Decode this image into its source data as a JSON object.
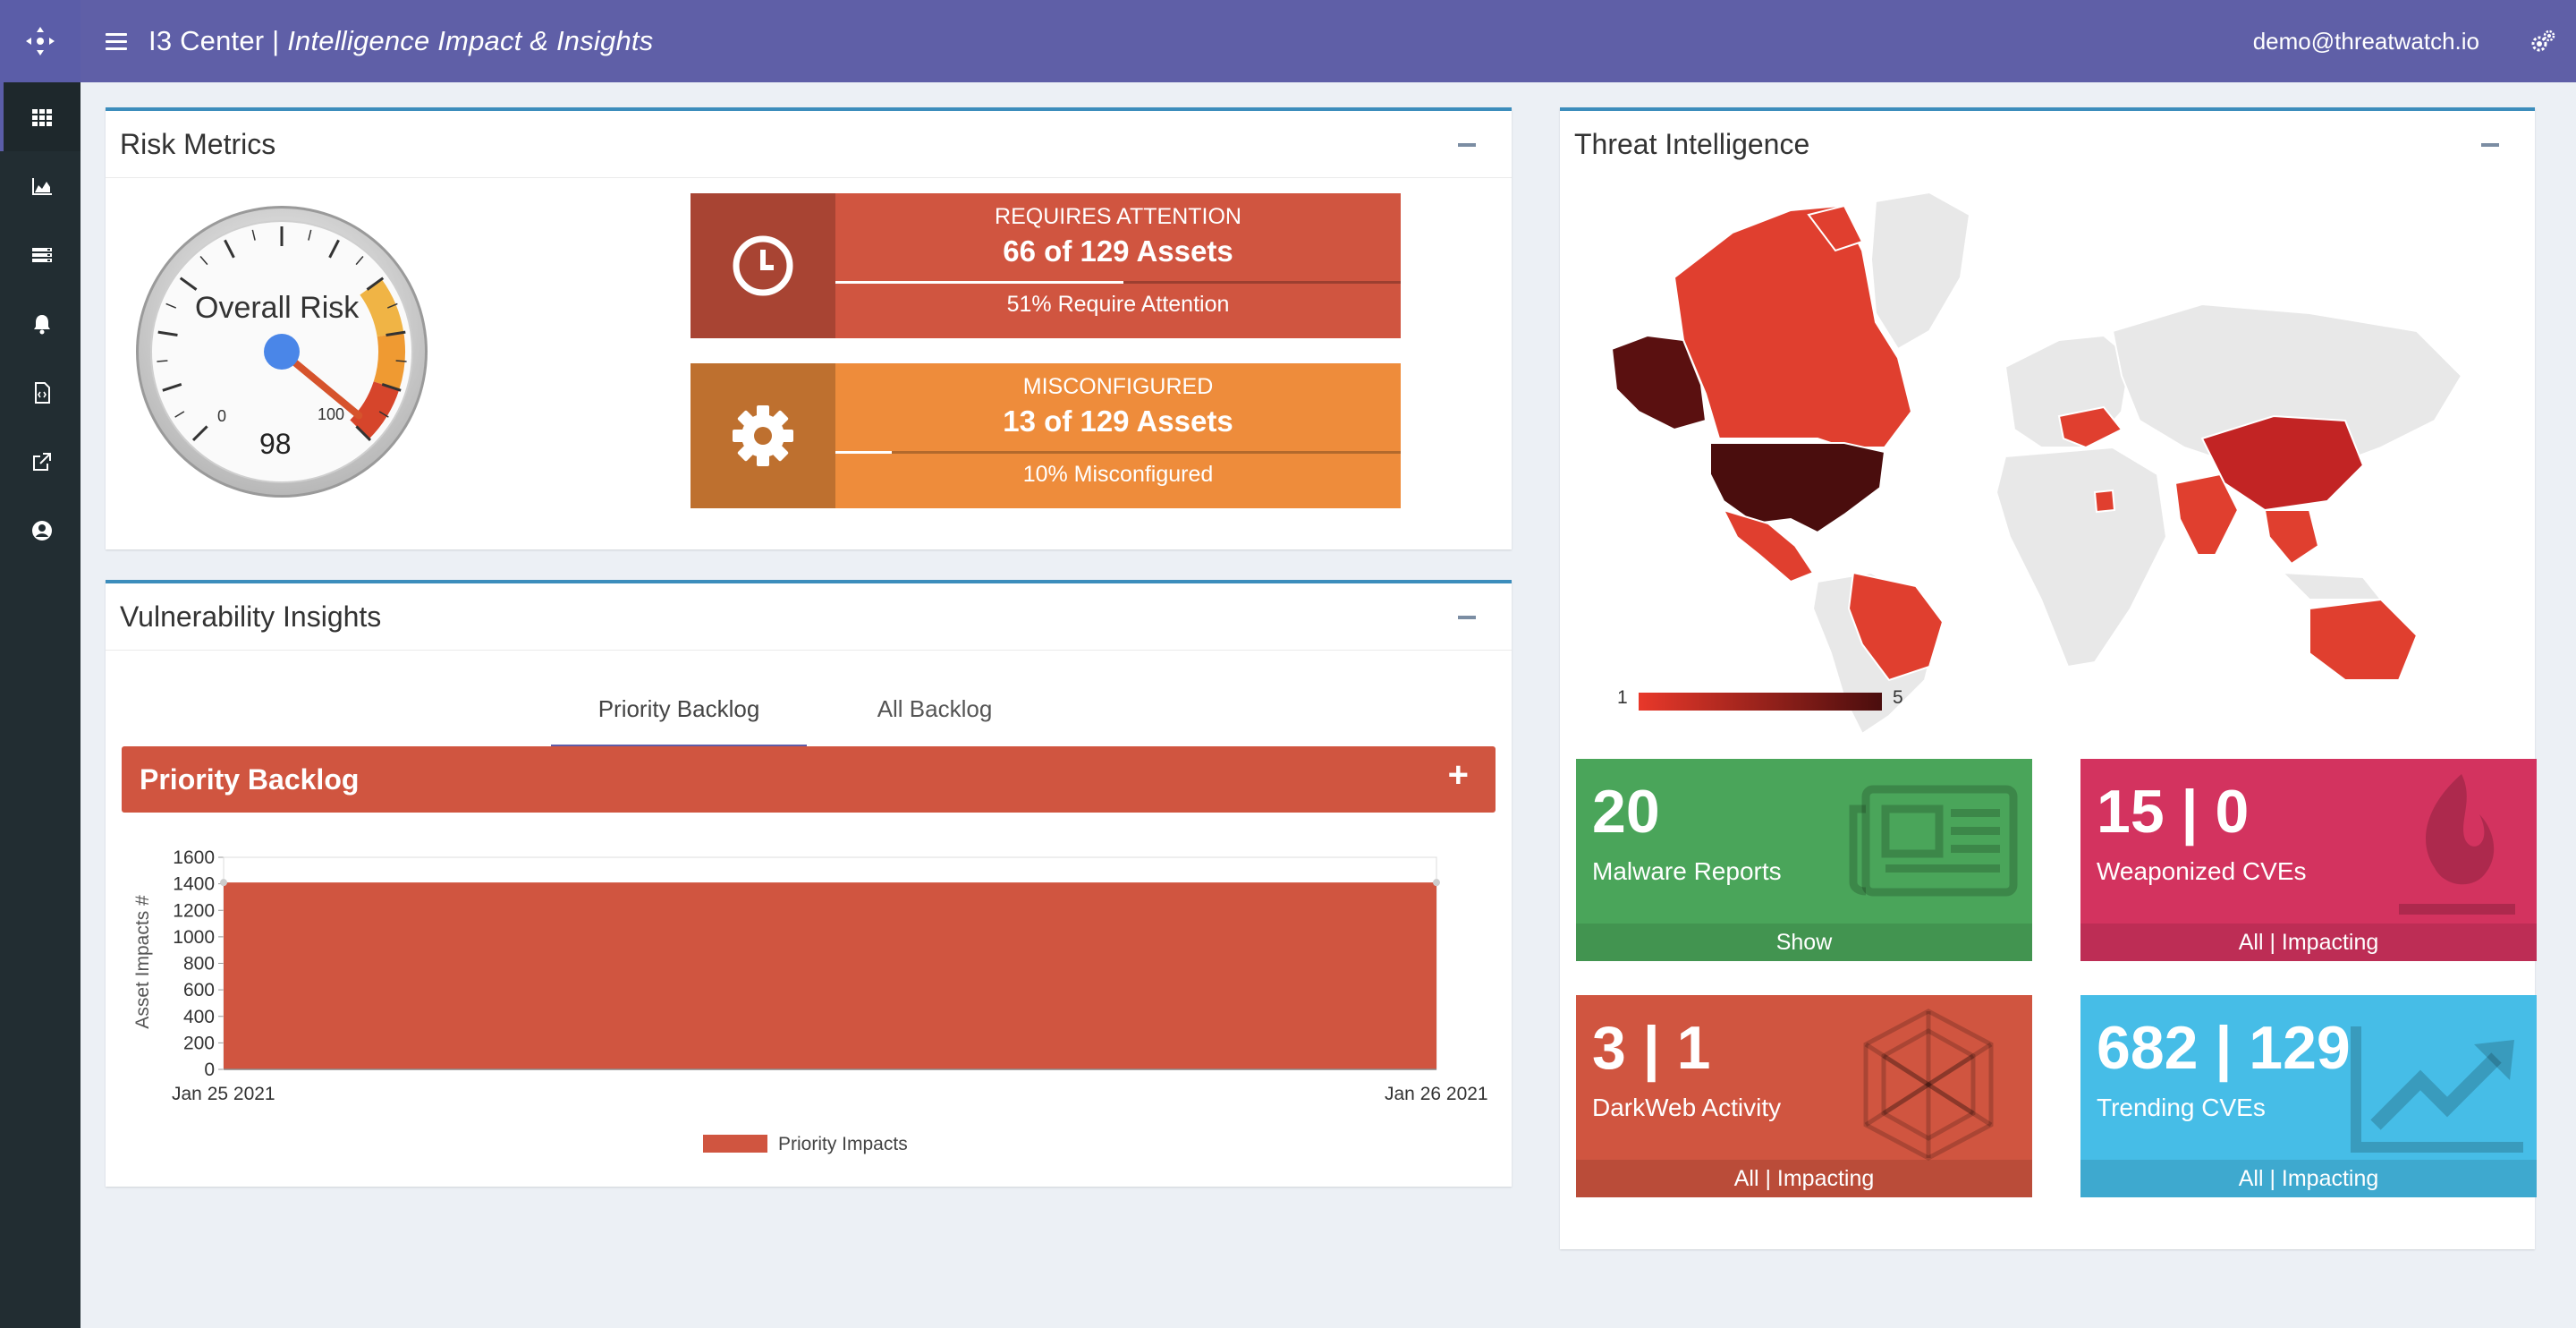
{
  "app": {
    "title_prefix": "I3 Center | ",
    "title_main": "Intelligence Impact & Insights",
    "user_email": "demo@threatwatch.io"
  },
  "sidebar": {
    "items": [
      {
        "icon": "grid-icon",
        "active": true
      },
      {
        "icon": "area-chart-icon"
      },
      {
        "icon": "server-list-icon"
      },
      {
        "icon": "bell-icon"
      },
      {
        "icon": "code-file-icon"
      },
      {
        "icon": "external-link-icon"
      },
      {
        "icon": "user-circle-icon"
      }
    ]
  },
  "risk_metrics": {
    "title": "Risk Metrics",
    "gauge": {
      "title": "Overall Risk",
      "value": "98",
      "min_label": "0",
      "max_label": "100",
      "value_num": 98
    },
    "requires_attention": {
      "label": "REQUIRES ATTENTION",
      "count": "66 of 129 Assets",
      "sub": "51% Require Attention",
      "progress": 0.51,
      "color": "#d05540",
      "icon_bg": "#a84433"
    },
    "misconfigured": {
      "label": "MISCONFIGURED",
      "count": "13 of 129 Assets",
      "sub": "10% Misconfigured",
      "progress": 0.1,
      "color": "#ee8c3b",
      "icon_bg": "#be702f"
    }
  },
  "vulnerability_insights": {
    "title": "Vulnerability Insights",
    "tabs": [
      "Priority Backlog",
      "All Backlog"
    ],
    "active_tab": "Priority Backlog",
    "backlog_bar": "Priority Backlog",
    "chart_data": {
      "type": "area",
      "x": [
        "Jan 25 2021",
        "Jan 26 2021"
      ],
      "series": [
        {
          "name": "Priority Impacts",
          "values": [
            1410,
            1410
          ],
          "color": "#d05540"
        }
      ],
      "ylabel": "Asset Impacts #",
      "xlabel": "",
      "ylim": [
        0,
        1600
      ],
      "yticks": [
        "0",
        "200",
        "400",
        "600",
        "800",
        "1000",
        "1200",
        "1400",
        "1600"
      ],
      "legend": "bottom"
    }
  },
  "threat_intelligence": {
    "title": "Threat Intelligence",
    "map_legend": {
      "min": "1",
      "max": "5"
    },
    "boxes": [
      {
        "value": "20",
        "label": "Malware Reports",
        "footer": "Show",
        "color": "#4aa55a",
        "icon": "newspaper-icon"
      },
      {
        "value": "15 | 0",
        "label": "Weaponized CVEs",
        "footer": "All | Impacting",
        "color": "#d3335f",
        "icon": "fire-icon"
      },
      {
        "value": "3 | 1",
        "label": "DarkWeb Activity",
        "footer": "All | Impacting",
        "color": "#d05540",
        "icon": "mesh-polygon-icon"
      },
      {
        "value": "682 | 129",
        "label": "Trending CVEs",
        "footer": "All | Impacting",
        "color": "#46bde7",
        "icon": "trend-up-icon"
      }
    ]
  }
}
